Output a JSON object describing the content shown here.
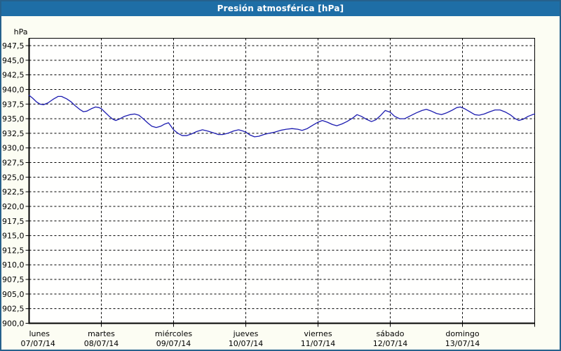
{
  "window": {
    "title": "Presión atmosférica [hPa]"
  },
  "colors": {
    "title_bar_bg": "#1e6ea6",
    "title_bar_text": "#ffffff",
    "outer_border": "#26618c",
    "page_background": "#fcfdf3",
    "plot_background": "#fffffe",
    "axis_and_grid": "#000000",
    "series_line": "#1c1cb0"
  },
  "chart_data": {
    "type": "line",
    "title": "Presión atmosférica [hPa]",
    "grid": "dashed",
    "legend": "none",
    "y_axis": {
      "unit_label": "hPa",
      "min": 900,
      "max": 948.75,
      "tick_values": [
        947.5,
        945.0,
        942.5,
        940.0,
        937.5,
        935.0,
        932.5,
        930.0,
        927.5,
        925.0,
        922.5,
        920.0,
        917.5,
        915.0,
        912.5,
        910.0,
        907.5,
        905.0,
        902.5,
        900.0
      ],
      "tick_labels": [
        "947,5",
        "945,0",
        "942,5",
        "940,0",
        "937,5",
        "935,0",
        "932,5",
        "930,0",
        "927,5",
        "925,0",
        "922,5",
        "920,0",
        "917,5",
        "915,0",
        "912,5",
        "910,0",
        "907,5",
        "905,0",
        "902,5",
        "900,0"
      ]
    },
    "x_axis": {
      "range_days": [
        0,
        7
      ],
      "days": [
        {
          "name": "lunes",
          "date": "07/07/14"
        },
        {
          "name": "martes",
          "date": "08/07/14"
        },
        {
          "name": "miércoles",
          "date": "09/07/14"
        },
        {
          "name": "jueves",
          "date": "10/07/14"
        },
        {
          "name": "viernes",
          "date": "11/07/14"
        },
        {
          "name": "sábado",
          "date": "12/07/14"
        },
        {
          "name": "domingo",
          "date": "13/07/14"
        }
      ]
    },
    "series": [
      {
        "name": "Presión atmosférica",
        "unit": "hPa",
        "color": "#1c1cb0",
        "points": [
          [
            0.0,
            939.0
          ],
          [
            0.05,
            938.5
          ],
          [
            0.1,
            937.9
          ],
          [
            0.15,
            937.5
          ],
          [
            0.2,
            937.4
          ],
          [
            0.26,
            937.7
          ],
          [
            0.33,
            938.3
          ],
          [
            0.4,
            938.8
          ],
          [
            0.45,
            938.8
          ],
          [
            0.52,
            938.4
          ],
          [
            0.58,
            937.9
          ],
          [
            0.64,
            937.2
          ],
          [
            0.7,
            936.6
          ],
          [
            0.75,
            936.2
          ],
          [
            0.8,
            936.3
          ],
          [
            0.86,
            936.7
          ],
          [
            0.92,
            937.0
          ],
          [
            0.97,
            936.9
          ],
          [
            1.0,
            936.7
          ],
          [
            1.05,
            936.1
          ],
          [
            1.11,
            935.4
          ],
          [
            1.16,
            934.9
          ],
          [
            1.2,
            934.7
          ],
          [
            1.26,
            935.0
          ],
          [
            1.32,
            935.4
          ],
          [
            1.4,
            935.7
          ],
          [
            1.46,
            935.8
          ],
          [
            1.52,
            935.6
          ],
          [
            1.58,
            935.0
          ],
          [
            1.64,
            934.3
          ],
          [
            1.7,
            933.7
          ],
          [
            1.76,
            933.5
          ],
          [
            1.82,
            933.7
          ],
          [
            1.88,
            934.1
          ],
          [
            1.93,
            934.3
          ],
          [
            2.0,
            933.1
          ],
          [
            2.06,
            932.5
          ],
          [
            2.12,
            932.1
          ],
          [
            2.18,
            932.1
          ],
          [
            2.25,
            932.4
          ],
          [
            2.32,
            932.8
          ],
          [
            2.4,
            933.1
          ],
          [
            2.47,
            932.9
          ],
          [
            2.55,
            932.6
          ],
          [
            2.62,
            932.3
          ],
          [
            2.68,
            932.3
          ],
          [
            2.75,
            932.5
          ],
          [
            2.83,
            932.9
          ],
          [
            2.9,
            933.1
          ],
          [
            2.96,
            932.9
          ],
          [
            3.0,
            932.7
          ],
          [
            3.06,
            932.2
          ],
          [
            3.12,
            931.9
          ],
          [
            3.18,
            932.0
          ],
          [
            3.25,
            932.3
          ],
          [
            3.32,
            932.5
          ],
          [
            3.4,
            932.7
          ],
          [
            3.48,
            933.0
          ],
          [
            3.56,
            933.2
          ],
          [
            3.64,
            933.3
          ],
          [
            3.72,
            933.2
          ],
          [
            3.78,
            933.0
          ],
          [
            3.85,
            933.3
          ],
          [
            3.93,
            933.9
          ],
          [
            4.0,
            934.4
          ],
          [
            4.06,
            934.7
          ],
          [
            4.13,
            934.4
          ],
          [
            4.2,
            934.0
          ],
          [
            4.26,
            933.8
          ],
          [
            4.33,
            934.1
          ],
          [
            4.4,
            934.5
          ],
          [
            4.48,
            935.1
          ],
          [
            4.54,
            935.7
          ],
          [
            4.6,
            935.4
          ],
          [
            4.67,
            934.9
          ],
          [
            4.74,
            934.5
          ],
          [
            4.8,
            934.8
          ],
          [
            4.87,
            935.6
          ],
          [
            4.93,
            936.4
          ],
          [
            5.0,
            936.1
          ],
          [
            5.06,
            935.4
          ],
          [
            5.13,
            935.0
          ],
          [
            5.2,
            935.0
          ],
          [
            5.28,
            935.5
          ],
          [
            5.36,
            936.0
          ],
          [
            5.44,
            936.4
          ],
          [
            5.5,
            936.6
          ],
          [
            5.57,
            936.3
          ],
          [
            5.64,
            935.9
          ],
          [
            5.71,
            935.7
          ],
          [
            5.78,
            936.0
          ],
          [
            5.85,
            936.4
          ],
          [
            5.92,
            936.9
          ],
          [
            5.97,
            937.0
          ],
          [
            6.03,
            936.7
          ],
          [
            6.1,
            936.2
          ],
          [
            6.17,
            935.7
          ],
          [
            6.23,
            935.6
          ],
          [
            6.3,
            935.8
          ],
          [
            6.38,
            936.2
          ],
          [
            6.45,
            936.5
          ],
          [
            6.52,
            936.5
          ],
          [
            6.6,
            936.1
          ],
          [
            6.67,
            935.6
          ],
          [
            6.73,
            935.0
          ],
          [
            6.78,
            934.7
          ],
          [
            6.84,
            934.9
          ],
          [
            6.91,
            935.4
          ],
          [
            6.97,
            935.7
          ],
          [
            7.0,
            935.8
          ]
        ]
      }
    ]
  }
}
